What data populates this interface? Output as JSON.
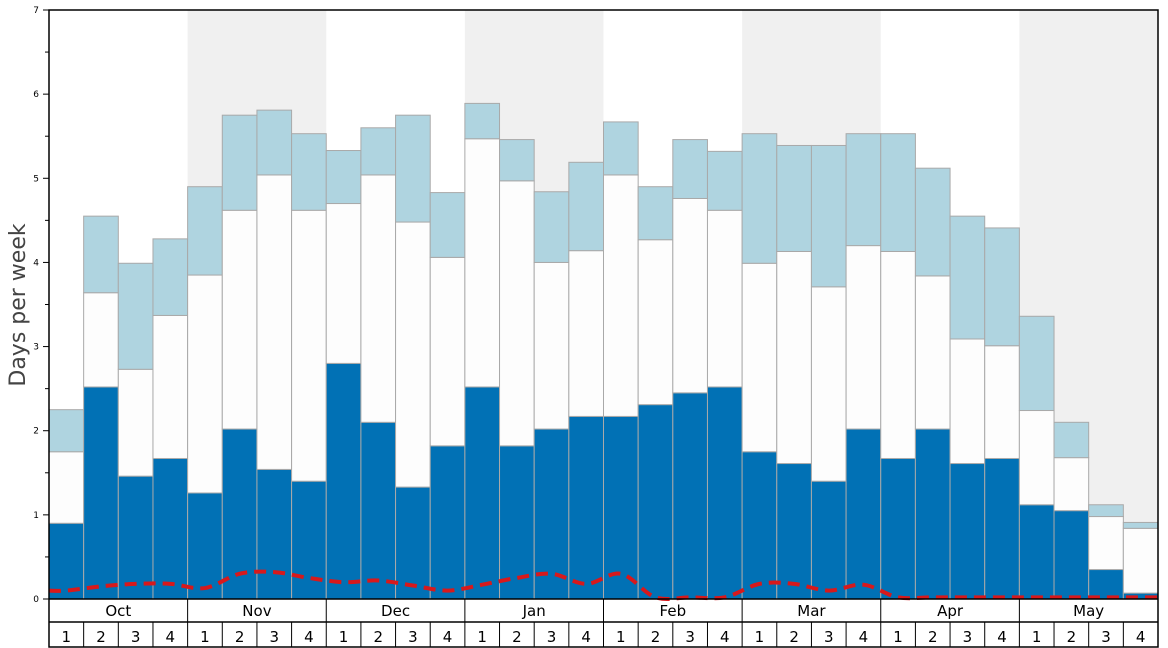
{
  "chart_data": {
    "type": "bar",
    "stacked": true,
    "ylabel": "Days per week",
    "ylim": [
      0,
      7
    ],
    "y_ticks": [
      "0",
      "1",
      "2",
      "3",
      "4",
      "5",
      "6",
      "7"
    ],
    "months": [
      "Oct",
      "Nov",
      "Dec",
      "Jan",
      "Feb",
      "Mar",
      "Apr",
      "May"
    ],
    "week_labels": [
      "1",
      "2",
      "3",
      "4"
    ],
    "shaded_months": [
      "Nov",
      "Jan",
      "Mar",
      "May"
    ],
    "colors": {
      "series1": "#0171b5",
      "series2": "#fdfdfd",
      "series3": "#afd4e0",
      "bar_edge": "#a9a9a9",
      "band": "#f0f0f0",
      "line": "#d7191c"
    },
    "series": [
      {
        "values": [
          0.9,
          2.52,
          1.46,
          1.67,
          1.26,
          2.02,
          1.54,
          1.4,
          2.8,
          2.1,
          1.33,
          1.82,
          2.52,
          1.82,
          2.02,
          2.17,
          2.17,
          2.31,
          2.45,
          2.52,
          1.75,
          1.61,
          1.4,
          2.02,
          1.67,
          2.02,
          1.61,
          1.67,
          1.12,
          1.05,
          0.35,
          0.07
        ]
      },
      {
        "values": [
          0.85,
          1.12,
          1.27,
          1.7,
          2.59,
          2.6,
          3.5,
          3.22,
          1.9,
          2.94,
          3.15,
          2.24,
          2.95,
          3.15,
          1.98,
          1.97,
          2.87,
          1.96,
          2.31,
          2.1,
          2.24,
          2.52,
          2.31,
          2.18,
          2.46,
          1.82,
          1.48,
          1.34,
          1.12,
          0.63,
          0.63,
          0.77
        ]
      },
      {
        "values": [
          0.5,
          0.91,
          1.26,
          0.91,
          1.05,
          1.13,
          0.77,
          0.91,
          0.63,
          0.56,
          1.27,
          0.77,
          0.42,
          0.49,
          0.84,
          1.05,
          0.63,
          0.63,
          0.7,
          0.7,
          1.54,
          1.26,
          1.68,
          1.33,
          1.4,
          1.28,
          1.46,
          1.4,
          1.12,
          0.42,
          0.14,
          0.07
        ]
      }
    ],
    "line_values": [
      0.1,
      0.15,
      0.18,
      0.18,
      0.13,
      0.3,
      0.32,
      0.25,
      0.2,
      0.22,
      0.16,
      0.1,
      0.17,
      0.25,
      0.3,
      0.18,
      0.3,
      0.02,
      0.02,
      0.02,
      0.18,
      0.18,
      0.1,
      0.17,
      0.02,
      0.02,
      0.02,
      0.02,
      0.02,
      0.02,
      0.02,
      0.02
    ],
    "grid": false
  }
}
